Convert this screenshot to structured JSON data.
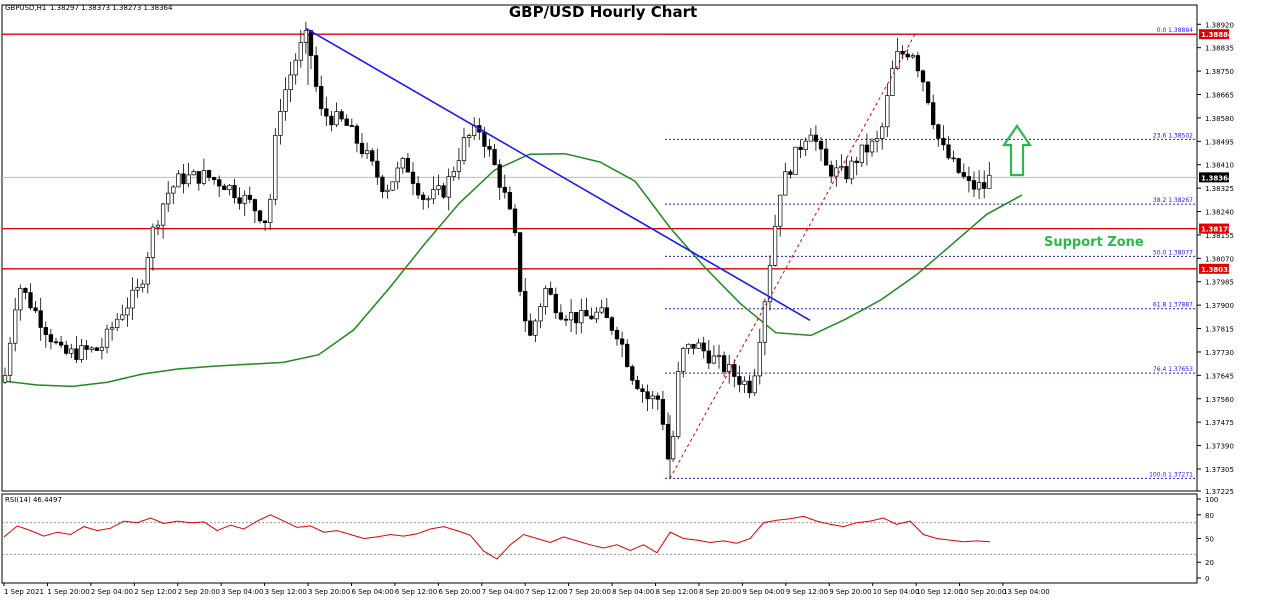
{
  "chart_data": {
    "type": "candlestick",
    "title": "GBP/USD Hourly Chart",
    "symbol_info": {
      "label": "GBPUSD,H1",
      "open": "1.38297",
      "high": "1.38373",
      "low": "1.38273",
      "close": "1.38364"
    },
    "price_axis": {
      "ylim": [
        1.37225,
        1.3899
      ],
      "ticks": [
        "1.38920",
        "1.38835",
        "1.38750",
        "1.38665",
        "1.38580",
        "1.38495",
        "1.38410",
        "1.38325",
        "1.38240",
        "1.38155",
        "1.38070",
        "1.37985",
        "1.37900",
        "1.37815",
        "1.37730",
        "1.37645",
        "1.37560",
        "1.37475",
        "1.37390",
        "1.37305",
        "1.37225"
      ],
      "tags": [
        {
          "text": "1.38884",
          "value": 1.38884,
          "color": "#e00000"
        },
        {
          "text": "1.38364",
          "value": 1.38364,
          "color": "#000000"
        },
        {
          "text": "1.38178",
          "value": 1.38178,
          "color": "#e00000"
        },
        {
          "text": "1.38032",
          "value": 1.38032,
          "color": "#e00000"
        }
      ]
    },
    "time_axis": {
      "labels": [
        "1 Sep 2021",
        "1 Sep 20:00",
        "2 Sep 04:00",
        "2 Sep 12:00",
        "2 Sep 20:00",
        "3 Sep 04:00",
        "3 Sep 12:00",
        "3 Sep 20:00",
        "6 Sep 04:00",
        "6 Sep 12:00",
        "6 Sep 20:00",
        "7 Sep 04:00",
        "7 Sep 12:00",
        "7 Sep 20:00",
        "8 Sep 04:00",
        "8 Sep 12:00",
        "8 Sep 20:00",
        "9 Sep 04:00",
        "9 Sep 12:00",
        "9 Sep 20:00",
        "10 Sep 04:00",
        "10 Sep 12:00",
        "10 Sep 20:00",
        "13 Sep 04:00"
      ]
    },
    "horizontal_levels": [
      {
        "value": 1.38884,
        "color": "#e00000"
      },
      {
        "value": 1.38178,
        "color": "#e00000"
      },
      {
        "value": 1.38032,
        "color": "#e00000"
      }
    ],
    "fibonacci": {
      "color": "#1a1aff",
      "levels": [
        {
          "text": "0.0 1.38884",
          "value": 1.38884
        },
        {
          "text": "23.6 1.38502",
          "value": 1.38502
        },
        {
          "text": "38.2 1.38267",
          "value": 1.38267
        },
        {
          "text": "50.0 1.38077",
          "value": 1.38077
        },
        {
          "text": "61.8 1.37887",
          "value": 1.37887
        },
        {
          "text": "76.4 1.37653",
          "value": 1.37653
        },
        {
          "text": "100.0 1.37271",
          "value": 1.37271
        }
      ]
    },
    "annotations": [
      {
        "text": "Support Zone",
        "color": "#2db84b"
      }
    ],
    "bearish_trendline": {
      "color": "#1a1aff",
      "start": 1.38905,
      "end": 1.37845
    },
    "moving_average": {
      "color": "#1f8b1f",
      "values": [
        1.37625,
        1.3761,
        1.37605,
        1.3762,
        1.3765,
        1.37668,
        1.37678,
        1.37685,
        1.37692,
        1.3772,
        1.3781,
        1.3796,
        1.3812,
        1.3827,
        1.3839,
        1.38448,
        1.3845,
        1.3842,
        1.3835,
        1.3818,
        1.38035,
        1.37905,
        1.378,
        1.3779,
        1.3785,
        1.3792,
        1.3801,
        1.3812,
        1.3823,
        1.383
      ]
    },
    "candles_description": "Hourly OHLC candles from 1 Sep 2021 to 13 Sep 2021; 1.37271 low on 8 Sep, 1.38884 high on 10 Sep",
    "rsi": {
      "label": "RSI(14) 46.4497",
      "ylim": [
        0,
        100
      ],
      "ticks": [
        "100",
        "80",
        "50",
        "20",
        "0"
      ],
      "levels": [
        70,
        30
      ],
      "color": "#e00000",
      "values": [
        52,
        66,
        60,
        53,
        58,
        55,
        65,
        60,
        63,
        72,
        70,
        76,
        69,
        72,
        70,
        71,
        60,
        67,
        62,
        72,
        80,
        72,
        64,
        66,
        58,
        60,
        55,
        50,
        52,
        55,
        53,
        56,
        62,
        65,
        60,
        54,
        34,
        24,
        42,
        55,
        50,
        45,
        52,
        47,
        42,
        38,
        42,
        35,
        42,
        32,
        58,
        50,
        48,
        45,
        47,
        44,
        50,
        70,
        73,
        75,
        78,
        72,
        68,
        65,
        70,
        72,
        76,
        68,
        72,
        55,
        50,
        48,
        46,
        47,
        46
      ]
    }
  }
}
